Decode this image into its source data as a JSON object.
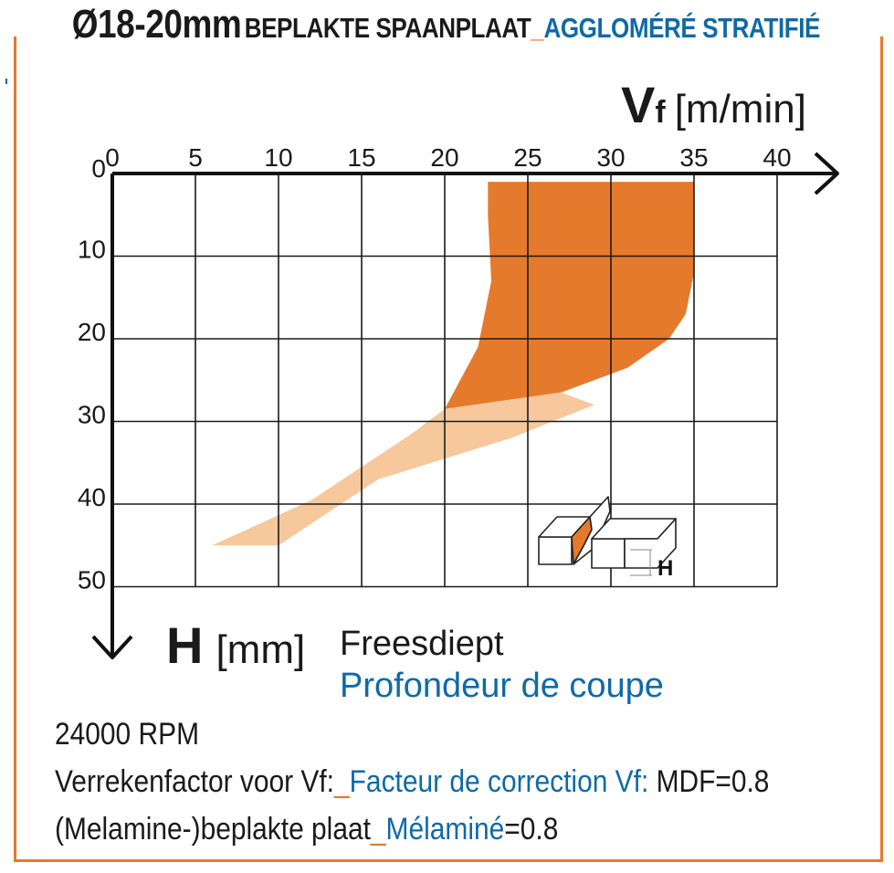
{
  "title": {
    "diameter": "Ø18-20mm",
    "material_nl": "BEPLAKTE SPAANPLAAT",
    "separator": "_",
    "material_fr": "AGGLOMÉRÉ STRATIFIÉ"
  },
  "x_axis": {
    "symbol": "V",
    "subscript": "f",
    "unit": "[m/min]"
  },
  "y_axis": {
    "symbol": "H",
    "unit": "[mm]",
    "label_nl": "Freesdiept",
    "label_fr": "Profondeur de coupe"
  },
  "inset": {
    "label": "H"
  },
  "notes": {
    "rpm": "24000 RPM",
    "line2_nl": "Verrekenfactor voor Vf:",
    "line2_sep": "_",
    "line2_fr": "Facteur de correction Vf:",
    "line2_value": " MDF=0.8",
    "line3_nl": "(Melamine-)beplakte plaat",
    "line3_sep": "_",
    "line3_fr": "Mélaminé",
    "line3_value": "=0.8"
  },
  "colors": {
    "accent": "#e57a2c",
    "light": "#f6c89c",
    "blue": "#0f6aa7",
    "grid": "#1a1a1a"
  },
  "chart_data": {
    "type": "area",
    "x_axis_label": "Vf [m/min]",
    "y_axis_label": "H [mm]",
    "xlim": [
      0,
      40
    ],
    "ylim": [
      0,
      50
    ],
    "y_inverted": true,
    "grid": true,
    "x_ticks": [
      "0",
      "5",
      "10",
      "15",
      "20",
      "25",
      "30",
      "35",
      "40"
    ],
    "y_ticks": [
      "0",
      "10",
      "20",
      "30",
      "40",
      "50"
    ],
    "regions": [
      {
        "shade": "dark",
        "polygon": [
          [
            22.6,
            1
          ],
          [
            35,
            1
          ],
          [
            35,
            12
          ],
          [
            34.5,
            17
          ],
          [
            33.5,
            20
          ],
          [
            31,
            23.5
          ],
          [
            27,
            26.5
          ],
          [
            20,
            28.5
          ],
          [
            22,
            21
          ],
          [
            22.8,
            13
          ],
          [
            22.6,
            5
          ]
        ]
      },
      {
        "shade": "light",
        "polygon": [
          [
            20,
            28.5
          ],
          [
            27,
            26.5
          ],
          [
            29,
            28
          ],
          [
            24,
            32
          ],
          [
            16,
            37
          ],
          [
            10,
            45
          ],
          [
            6,
            45
          ],
          [
            12,
            39.5
          ],
          [
            18,
            31.5
          ]
        ]
      }
    ]
  }
}
